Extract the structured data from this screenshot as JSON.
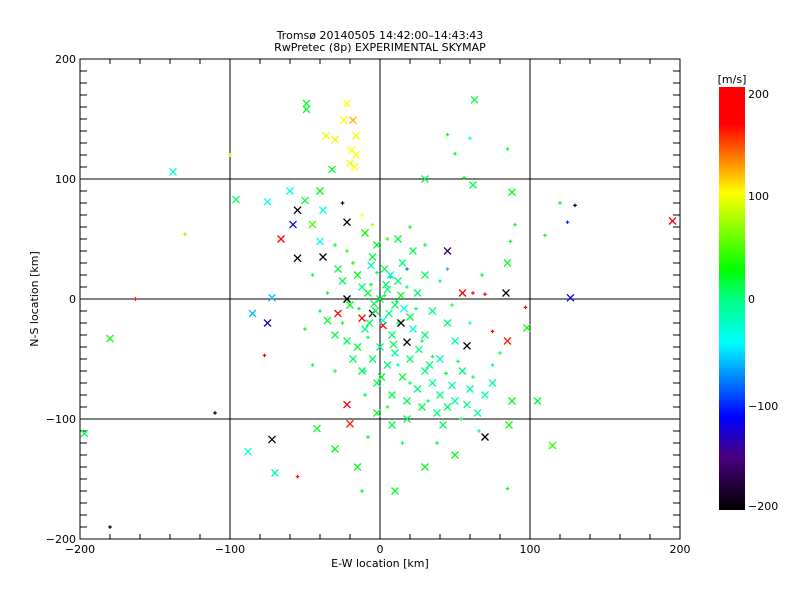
{
  "chart_data": {
    "type": "scatter",
    "title": "Tromsø 20140505 14:42:00–14:43:43",
    "subtitle": "RwPretec (8p) EXPERIMENTAL SKYMAP",
    "xlabel": "E-W location [km]",
    "ylabel": "N-S location [km]",
    "xlim": [
      -200,
      200
    ],
    "ylim": [
      -200,
      200
    ],
    "grid": true,
    "xticks": [
      "−200",
      "−100",
      "0",
      "100",
      "200"
    ],
    "yticks": [
      "200",
      "100",
      "0",
      "−100",
      "−200"
    ],
    "colorbar": {
      "label": "[m/s]",
      "range": [
        -200,
        200
      ],
      "ticks": [
        "200",
        "100",
        "0",
        "−100",
        "−200"
      ],
      "stops": [
        [
          -200,
          "#000000"
        ],
        [
          -150,
          "#4a0080"
        ],
        [
          -112,
          "#0000ff"
        ],
        [
          -42,
          "#00ffff"
        ],
        [
          0,
          "#00ff80"
        ],
        [
          27,
          "#00ff00"
        ],
        [
          100,
          "#ffff00"
        ],
        [
          165,
          "#ff0000"
        ],
        [
          200,
          "#ff0000"
        ]
      ]
    },
    "marker_legend": {
      "x": "cross marker",
      "+": "plus marker"
    },
    "points_format": "[x_km, y_km, velocity_m_s, marker]",
    "points": [
      [
        -49,
        163,
        20,
        "x"
      ],
      [
        -49,
        158,
        20,
        "x"
      ],
      [
        -22,
        163,
        100,
        "x"
      ],
      [
        -24,
        149,
        100,
        "x"
      ],
      [
        -18,
        149,
        120,
        "x"
      ],
      [
        -36,
        136,
        95,
        "x"
      ],
      [
        -30,
        133,
        105,
        "x"
      ],
      [
        -16,
        136,
        95,
        "x"
      ],
      [
        -19,
        124,
        100,
        "x"
      ],
      [
        -16,
        120,
        100,
        "x"
      ],
      [
        -20,
        113,
        95,
        "x"
      ],
      [
        -17,
        110,
        100,
        "x"
      ],
      [
        -32,
        108,
        20,
        "x"
      ],
      [
        -138,
        106,
        -30,
        "x"
      ],
      [
        -96,
        83,
        10,
        "x"
      ],
      [
        -75,
        81,
        -40,
        "x"
      ],
      [
        -60,
        90,
        -30,
        "x"
      ],
      [
        -40,
        90,
        25,
        "x"
      ],
      [
        -50,
        82,
        15,
        "x"
      ],
      [
        -55,
        74,
        -200,
        "x"
      ],
      [
        -38,
        74,
        -30,
        "x"
      ],
      [
        -58,
        62,
        -110,
        "x"
      ],
      [
        -45,
        62,
        45,
        "x"
      ],
      [
        -22,
        64,
        -200,
        "x"
      ],
      [
        -66,
        50,
        170,
        "x"
      ],
      [
        -40,
        48,
        -40,
        "x"
      ],
      [
        -55,
        34,
        -200,
        "x"
      ],
      [
        -72,
        1,
        -60,
        "x"
      ],
      [
        -85,
        -12,
        -60,
        "x"
      ],
      [
        -75,
        -20,
        -130,
        "x"
      ],
      [
        -180,
        -33,
        30,
        "x"
      ],
      [
        -197,
        -112,
        10,
        "x"
      ],
      [
        -72,
        -117,
        -200,
        "x"
      ],
      [
        -88,
        -127,
        -30,
        "x"
      ],
      [
        -70,
        -145,
        -20,
        "x"
      ],
      [
        -42,
        -108,
        20,
        "x"
      ],
      [
        -30,
        -125,
        20,
        "x"
      ],
      [
        -20,
        -104,
        160,
        "x"
      ],
      [
        -22,
        -88,
        180,
        "x"
      ],
      [
        -12,
        -16,
        180,
        "x"
      ],
      [
        -28,
        -12,
        180,
        "x"
      ],
      [
        2,
        -22,
        180,
        "x"
      ],
      [
        14,
        -20,
        -200,
        "x"
      ],
      [
        18,
        -36,
        -200,
        "x"
      ],
      [
        58,
        -39,
        -200,
        "x"
      ],
      [
        70,
        -115,
        -200,
        "x"
      ],
      [
        85,
        -35,
        160,
        "x"
      ],
      [
        84,
        5,
        -200,
        "x"
      ],
      [
        55,
        5,
        180,
        "x"
      ],
      [
        30,
        100,
        10,
        "x"
      ],
      [
        63,
        166,
        15,
        "x"
      ],
      [
        62,
        95,
        10,
        "x"
      ],
      [
        88,
        89,
        20,
        "x"
      ],
      [
        45,
        40,
        -160,
        "x"
      ],
      [
        85,
        30,
        20,
        "x"
      ],
      [
        127,
        1,
        -120,
        "x"
      ],
      [
        195,
        65,
        180,
        "x"
      ],
      [
        98,
        -24,
        30,
        "x"
      ],
      [
        105,
        -85,
        20,
        "x"
      ],
      [
        115,
        -122,
        40,
        "x"
      ],
      [
        86,
        -105,
        30,
        "x"
      ],
      [
        88,
        -85,
        20,
        "x"
      ],
      [
        10,
        -160,
        20,
        "x"
      ],
      [
        50,
        -130,
        20,
        "x"
      ],
      [
        30,
        -140,
        20,
        "x"
      ],
      [
        -15,
        -140,
        20,
        "x"
      ],
      [
        -5,
        -12,
        -200,
        "x"
      ],
      [
        -22,
        0,
        -200,
        "x"
      ],
      [
        -38,
        35,
        -200,
        "x"
      ],
      [
        -130,
        54,
        70,
        "+"
      ],
      [
        -100,
        120,
        90,
        "+"
      ],
      [
        -163,
        0,
        180,
        "+"
      ],
      [
        -180,
        -190,
        -200,
        "+"
      ],
      [
        -110,
        -95,
        -200,
        "+"
      ],
      [
        -77,
        -47,
        180,
        "+"
      ],
      [
        -55,
        -148,
        180,
        "+"
      ],
      [
        45,
        137,
        20,
        "+"
      ],
      [
        50,
        121,
        20,
        "+"
      ],
      [
        60,
        134,
        -40,
        "+"
      ],
      [
        56,
        101,
        20,
        "+"
      ],
      [
        85,
        125,
        20,
        "+"
      ],
      [
        130,
        78,
        -200,
        "+"
      ],
      [
        90,
        62,
        20,
        "+"
      ],
      [
        87,
        48,
        20,
        "+"
      ],
      [
        120,
        80,
        20,
        "+"
      ],
      [
        125,
        64,
        -100,
        "+"
      ],
      [
        110,
        53,
        30,
        "+"
      ],
      [
        68,
        20,
        20,
        "+"
      ],
      [
        97,
        -7,
        180,
        "+"
      ],
      [
        75,
        -27,
        180,
        "+"
      ],
      [
        -25,
        80,
        -200,
        "+"
      ],
      [
        -12,
        -160,
        20,
        "+"
      ],
      [
        85,
        -158,
        20,
        "+"
      ],
      [
        70,
        4,
        180,
        "+"
      ],
      [
        62,
        5,
        180,
        "+"
      ],
      [
        0,
        0,
        10,
        "x"
      ],
      [
        5,
        8,
        0,
        "x"
      ],
      [
        -8,
        5,
        15,
        "x"
      ],
      [
        10,
        -5,
        5,
        "x"
      ],
      [
        -3,
        -10,
        10,
        "x"
      ],
      [
        12,
        15,
        0,
        "x"
      ],
      [
        -15,
        20,
        20,
        "x"
      ],
      [
        3,
        25,
        10,
        "x"
      ],
      [
        -10,
        -25,
        0,
        "x"
      ],
      [
        8,
        -30,
        5,
        "x"
      ],
      [
        20,
        -15,
        10,
        "x"
      ],
      [
        -20,
        -5,
        20,
        "x"
      ],
      [
        15,
        30,
        0,
        "x"
      ],
      [
        -5,
        35,
        15,
        "x"
      ],
      [
        25,
        5,
        5,
        "x"
      ],
      [
        -25,
        15,
        10,
        "x"
      ],
      [
        0,
        -40,
        0,
        "x"
      ],
      [
        10,
        -45,
        -10,
        "x"
      ],
      [
        20,
        -50,
        5,
        "x"
      ],
      [
        30,
        -60,
        0,
        "x"
      ],
      [
        35,
        -70,
        -10,
        "x"
      ],
      [
        40,
        -80,
        0,
        "x"
      ],
      [
        45,
        -90,
        5,
        "x"
      ],
      [
        50,
        -85,
        -10,
        "x"
      ],
      [
        25,
        -75,
        0,
        "x"
      ],
      [
        15,
        -65,
        10,
        "x"
      ],
      [
        5,
        -55,
        0,
        "x"
      ],
      [
        -5,
        -50,
        10,
        "x"
      ],
      [
        -15,
        -40,
        15,
        "x"
      ],
      [
        30,
        -30,
        0,
        "x"
      ],
      [
        40,
        -50,
        -20,
        "x"
      ],
      [
        55,
        -60,
        0,
        "x"
      ],
      [
        60,
        -75,
        -10,
        "x"
      ],
      [
        70,
        -80,
        -20,
        "x"
      ],
      [
        75,
        -70,
        -10,
        "x"
      ],
      [
        65,
        -95,
        -10,
        "x"
      ],
      [
        38,
        -95,
        0,
        "x"
      ],
      [
        28,
        -90,
        10,
        "x"
      ],
      [
        18,
        -85,
        10,
        "x"
      ],
      [
        8,
        -80,
        15,
        "x"
      ],
      [
        -2,
        -70,
        10,
        "x"
      ],
      [
        -12,
        -60,
        15,
        "x"
      ],
      [
        22,
        40,
        10,
        "x"
      ],
      [
        12,
        50,
        15,
        "x"
      ],
      [
        -2,
        45,
        20,
        "x"
      ],
      [
        -10,
        55,
        30,
        "x"
      ],
      [
        18,
        -100,
        10,
        "x"
      ],
      [
        8,
        -105,
        10,
        "x"
      ],
      [
        -2,
        -95,
        15,
        "x"
      ],
      [
        45,
        -20,
        0,
        "x"
      ],
      [
        50,
        -35,
        -10,
        "x"
      ],
      [
        -30,
        -30,
        10,
        "x"
      ],
      [
        -35,
        -18,
        20,
        "x"
      ],
      [
        -28,
        25,
        10,
        "x"
      ],
      [
        30,
        20,
        5,
        "x"
      ],
      [
        35,
        -10,
        0,
        "x"
      ],
      [
        -18,
        -50,
        5,
        "x"
      ],
      [
        7,
        20,
        -30,
        "x"
      ],
      [
        -6,
        28,
        -20,
        "x"
      ],
      [
        2,
        -18,
        -30,
        "x"
      ],
      [
        16,
        -8,
        -40,
        "x"
      ],
      [
        22,
        -25,
        -30,
        "x"
      ],
      [
        -12,
        10,
        0,
        "x"
      ],
      [
        4,
        12,
        5,
        "x"
      ],
      [
        -4,
        -4,
        10,
        "x"
      ],
      [
        6,
        -12,
        0,
        "x"
      ],
      [
        14,
        3,
        20,
        "x"
      ],
      [
        -7,
        -20,
        5,
        "x"
      ],
      [
        9,
        -38,
        10,
        "x"
      ],
      [
        26,
        -42,
        0,
        "x"
      ],
      [
        33,
        -55,
        -5,
        "x"
      ],
      [
        48,
        -72,
        -10,
        "x"
      ],
      [
        58,
        -88,
        0,
        "x"
      ],
      [
        42,
        -105,
        10,
        "x"
      ],
      [
        -22,
        -35,
        10,
        "x"
      ],
      [
        1,
        -65,
        20,
        "x"
      ],
      [
        3,
        3,
        10,
        "+"
      ],
      [
        -6,
        12,
        20,
        "+"
      ],
      [
        11,
        -2,
        10,
        "+"
      ],
      [
        -14,
        -8,
        20,
        "+"
      ],
      [
        7,
        18,
        0,
        "+"
      ],
      [
        -2,
        22,
        10,
        "+"
      ],
      [
        18,
        10,
        0,
        "+"
      ],
      [
        -18,
        30,
        30,
        "+"
      ],
      [
        24,
        -8,
        10,
        "+"
      ],
      [
        -25,
        -20,
        20,
        "+"
      ],
      [
        12,
        -20,
        0,
        "+"
      ],
      [
        -8,
        -32,
        10,
        "+"
      ],
      [
        28,
        -35,
        0,
        "+"
      ],
      [
        35,
        -48,
        5,
        "+"
      ],
      [
        52,
        -52,
        10,
        "+"
      ],
      [
        62,
        -65,
        0,
        "+"
      ],
      [
        44,
        -62,
        20,
        "+"
      ],
      [
        20,
        -70,
        10,
        "+"
      ],
      [
        -10,
        -80,
        20,
        "+"
      ],
      [
        5,
        -90,
        10,
        "+"
      ],
      [
        32,
        -85,
        0,
        "+"
      ],
      [
        54,
        -100,
        10,
        "+"
      ],
      [
        66,
        -110,
        0,
        "+"
      ],
      [
        -35,
        5,
        20,
        "+"
      ],
      [
        -40,
        -10,
        10,
        "+"
      ],
      [
        40,
        15,
        0,
        "+"
      ],
      [
        48,
        -5,
        10,
        "+"
      ],
      [
        -30,
        45,
        30,
        "+"
      ],
      [
        -22,
        40,
        40,
        "+"
      ],
      [
        30,
        45,
        20,
        "+"
      ],
      [
        20,
        60,
        20,
        "+"
      ],
      [
        -12,
        70,
        100,
        "+"
      ],
      [
        -5,
        62,
        80,
        "+"
      ],
      [
        5,
        50,
        40,
        "+"
      ],
      [
        -45,
        20,
        10,
        "+"
      ],
      [
        -50,
        -25,
        20,
        "+"
      ],
      [
        -45,
        -55,
        10,
        "+"
      ],
      [
        -30,
        -60,
        15,
        "+"
      ],
      [
        15,
        -120,
        10,
        "+"
      ],
      [
        -8,
        -115,
        20,
        "+"
      ],
      [
        38,
        -120,
        20,
        "+"
      ],
      [
        75,
        -55,
        0,
        "+"
      ],
      [
        80,
        -45,
        10,
        "+"
      ],
      [
        60,
        -20,
        -40,
        "+"
      ],
      [
        45,
        25,
        -60,
        "+"
      ],
      [
        18,
        25,
        -80,
        "+"
      ],
      [
        -10,
        -60,
        -30,
        "+"
      ],
      [
        12,
        -55,
        -20,
        "+"
      ]
    ]
  }
}
